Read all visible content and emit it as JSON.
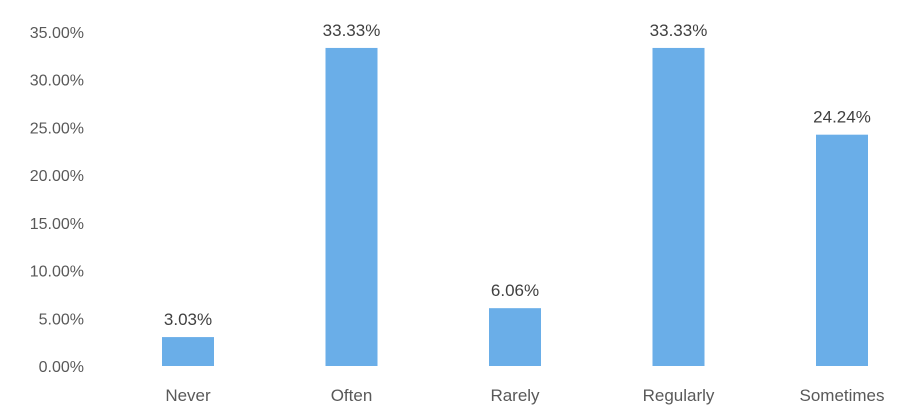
{
  "chart_data": {
    "type": "bar",
    "categories": [
      "Never",
      "Often",
      "Rarely",
      "Regularly",
      "Sometimes"
    ],
    "values": [
      3.03,
      33.33,
      6.06,
      33.33,
      24.24
    ],
    "data_labels": [
      "3.03%",
      "33.33%",
      "6.06%",
      "33.33%",
      "24.24%"
    ],
    "y_ticks": [
      0,
      5,
      10,
      15,
      20,
      25,
      30,
      35
    ],
    "y_tick_labels": [
      "0.00%",
      "5.00%",
      "10.00%",
      "15.00%",
      "20.00%",
      "25.00%",
      "30.00%",
      "35.00%"
    ],
    "ylim": [
      0,
      35
    ],
    "grid": false,
    "legend": "none",
    "bar_color": "#6aaee8"
  }
}
